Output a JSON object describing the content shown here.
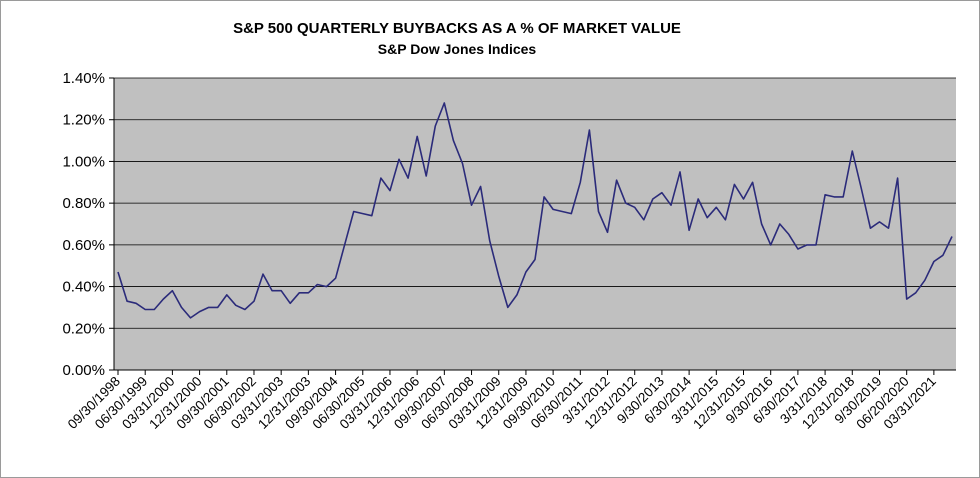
{
  "chart_data": {
    "type": "line",
    "title": "S&P 500 QUARTERLY BUYBACKS AS A % OF MARKET VALUE",
    "subtitle": "S&P Dow Jones Indices",
    "xlabel": "",
    "ylabel": "",
    "ylim": [
      0,
      1.4
    ],
    "y_tick_labels": [
      "0.00%",
      "0.20%",
      "0.40%",
      "0.60%",
      "0.80%",
      "1.00%",
      "1.20%",
      "1.40%"
    ],
    "x_tick_labels": [
      "09/30/1998",
      "06/30/1999",
      "03/31/2000",
      "12/31/2000",
      "09/30/2001",
      "06/30/2002",
      "03/31/2003",
      "12/31/2003",
      "09/30/2004",
      "06/30/2005",
      "03/31/2006",
      "12/31/2006",
      "09/30/2007",
      "06/30/2008",
      "03/31/2009",
      "12/31/2009",
      "09/30/2010",
      "06/30/2011",
      "3/31/2012",
      "12/31/2012",
      "9/30/2013",
      "6/30/2014",
      "3/31/2015",
      "12/31/2015",
      "9/30/2016",
      "6/30/2017",
      "3/31/2018",
      "12/31/2018",
      "9/30/2019",
      "06/20/2020",
      "03/31/2021"
    ],
    "grid": true,
    "plot_background": "#c0c0c0",
    "line_color": "#2b2b7a",
    "series": [
      {
        "values": [
          0.47,
          0.33,
          0.32,
          0.29,
          0.29,
          0.34,
          0.38,
          0.3,
          0.25,
          0.28,
          0.3,
          0.3,
          0.36,
          0.31,
          0.29,
          0.33,
          0.46,
          0.38,
          0.38,
          0.32,
          0.37,
          0.37,
          0.41,
          0.4,
          0.44,
          0.6,
          0.76,
          0.75,
          0.74,
          0.92,
          0.86,
          1.01,
          0.92,
          1.12,
          0.93,
          1.17,
          1.28,
          1.1,
          0.99,
          0.79,
          0.88,
          0.62,
          0.45,
          0.3,
          0.36,
          0.47,
          0.53,
          0.83,
          0.77,
          0.76,
          0.75,
          0.9,
          1.15,
          0.76,
          0.66,
          0.91,
          0.8,
          0.78,
          0.72,
          0.82,
          0.85,
          0.79,
          0.95,
          0.67,
          0.82,
          0.73,
          0.78,
          0.72,
          0.89,
          0.82,
          0.9,
          0.7,
          0.6,
          0.7,
          0.65,
          0.58,
          0.6,
          0.6,
          0.84,
          0.83,
          0.83,
          1.05,
          0.87,
          0.68,
          0.71,
          0.68,
          0.92,
          0.34,
          0.37,
          0.43,
          0.52,
          0.55,
          0.64
        ]
      }
    ]
  }
}
